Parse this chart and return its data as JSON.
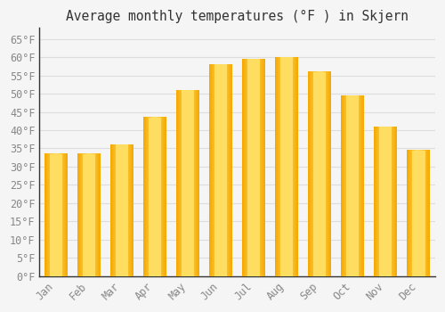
{
  "title": "Average monthly temperatures (°F ) in Skjern",
  "months": [
    "Jan",
    "Feb",
    "Mar",
    "Apr",
    "May",
    "Jun",
    "Jul",
    "Aug",
    "Sep",
    "Oct",
    "Nov",
    "Dec"
  ],
  "values": [
    33.5,
    33.5,
    36,
    43.5,
    51,
    58,
    59.5,
    60,
    56,
    49.5,
    41,
    34.5
  ],
  "bar_color_outer": "#F5A800",
  "bar_color_inner": "#FFDD60",
  "background_color": "#F5F5F5",
  "grid_color": "#DDDDDD",
  "text_color": "#888888",
  "title_color": "#333333",
  "spine_color": "#333333",
  "ylim": [
    0,
    68
  ],
  "yticks": [
    0,
    5,
    10,
    15,
    20,
    25,
    30,
    35,
    40,
    45,
    50,
    55,
    60,
    65
  ],
  "font_family": "monospace",
  "title_fontsize": 10.5,
  "tick_fontsize": 8.5
}
